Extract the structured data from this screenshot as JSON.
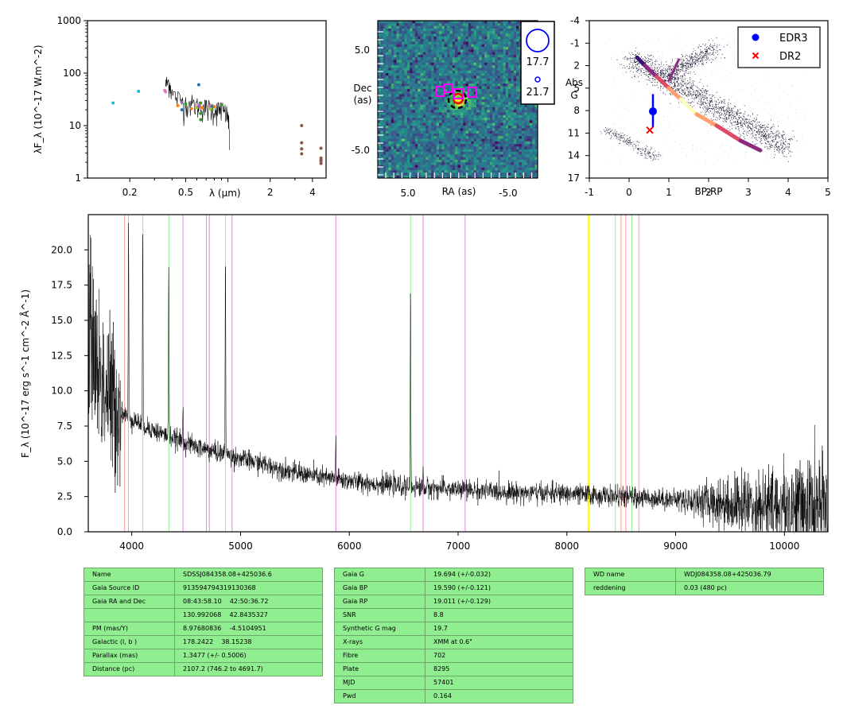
{
  "chart_data": [
    {
      "type": "scatter",
      "panel": "sed",
      "xlabel": "λ (μm)",
      "ylabel": "λF_λ (10^-17 W.m^-2)",
      "xscale": "log",
      "yscale": "log",
      "xlim": [
        0.1,
        5.0
      ],
      "ylim": [
        1,
        1000
      ],
      "xticks": [
        "0.2",
        "0.5",
        "2",
        "4"
      ],
      "yticks": [
        "1",
        "10",
        "100",
        "1000"
      ],
      "series": [
        {
          "color": "#17becf",
          "points": [
            [
              0.152,
              27
            ],
            [
              0.231,
              45
            ]
          ]
        },
        {
          "color": "#e377c2",
          "points": [
            [
              0.355,
              47
            ],
            [
              0.469,
              28
            ],
            [
              0.617,
              25
            ],
            [
              0.748,
              24
            ],
            [
              0.893,
              26
            ],
            [
              0.36,
              44
            ]
          ]
        },
        {
          "color": "#ff7f0e",
          "points": [
            [
              0.44,
              24
            ],
            [
              0.55,
              21
            ],
            [
              0.65,
              22
            ],
            [
              0.8,
              23
            ]
          ]
        },
        {
          "color": "#2ca02c",
          "points": [
            [
              0.5,
              26
            ],
            [
              0.64,
              27
            ],
            [
              0.64,
              13
            ],
            [
              0.64,
              17
            ],
            [
              0.77,
              20
            ],
            [
              0.9,
              25
            ]
          ]
        },
        {
          "color": "#1f77b4",
          "points": [
            [
              0.47,
              20
            ],
            [
              0.62,
              60
            ],
            [
              0.77,
              23
            ]
          ]
        },
        {
          "color": "#bcbd22",
          "points": [
            [
              0.6,
              22
            ],
            [
              0.75,
              21
            ]
          ]
        },
        {
          "color": "#9467bd",
          "points": [
            [
              0.47,
              28
            ],
            [
              0.62,
              23
            ]
          ]
        },
        {
          "color": "#8c564b",
          "points": [
            [
              3.35,
              10
            ],
            [
              3.35,
              4.7
            ],
            [
              3.35,
              3.6
            ],
            [
              3.35,
              2.9
            ],
            [
              4.6,
              3.7
            ],
            [
              4.6,
              2.4
            ],
            [
              4.6,
              2.1
            ],
            [
              4.6,
              1.9
            ],
            [
              4.6,
              2.2
            ]
          ]
        }
      ],
      "sdss_spectrum_envelope": [
        [
          0.36,
          60
        ],
        [
          0.38,
          70
        ],
        [
          0.4,
          40
        ],
        [
          0.45,
          32
        ],
        [
          0.5,
          27
        ],
        [
          0.55,
          26
        ],
        [
          0.6,
          24
        ],
        [
          0.65,
          23
        ],
        [
          0.7,
          22
        ],
        [
          0.75,
          21
        ],
        [
          0.8,
          20
        ],
        [
          0.85,
          20
        ],
        [
          0.9,
          20
        ],
        [
          0.95,
          18
        ],
        [
          1.0,
          15
        ],
        [
          1.03,
          4
        ]
      ]
    },
    {
      "type": "heatmap",
      "panel": "image",
      "xlabel": "RA (as)",
      "ylabel": "Dec\n(as)",
      "xlim": [
        8,
        -8
      ],
      "ylim": [
        -8,
        8
      ],
      "xticks": [
        "5.0",
        "-5.0"
      ],
      "yticks": [
        "5.0",
        "-5.0"
      ],
      "colormap": "viridis",
      "legend": [
        {
          "marker": "large-blue-circle",
          "label": "17.7"
        },
        {
          "marker": "small-blue-circle",
          "label": "21.7"
        }
      ]
    },
    {
      "type": "scatter",
      "panel": "hr",
      "xlabel": "BP-RP",
      "ylabel": "Abs\nG",
      "xlim": [
        -1,
        5
      ],
      "ylim": [
        17,
        -4
      ],
      "xticks": [
        "-1",
        "0",
        "1",
        "2",
        "3",
        "4",
        "5"
      ],
      "yticks": [
        "-4",
        "-1",
        "2",
        "5",
        "8",
        "11",
        "14",
        "17"
      ],
      "series": [
        {
          "name": "EDR3",
          "color": "#0000ff",
          "x": [
            0.6
          ],
          "y": [
            8.1
          ],
          "yerr": [
            [
              5.8,
              10.2
            ]
          ]
        },
        {
          "name": "DR2",
          "color": "#ff0000",
          "x": [
            0.52
          ],
          "y": [
            10.6
          ]
        }
      ]
    },
    {
      "type": "line",
      "panel": "spectrum",
      "xlabel": "",
      "ylabel": "F_λ (10^-17 erg s^-1 cm^-2 Å^-1)",
      "xlim": [
        3600,
        10400
      ],
      "ylim": [
        0,
        22.5
      ],
      "xticks": [
        "4000",
        "5000",
        "6000",
        "7000",
        "8000",
        "9000",
        "10000"
      ],
      "yticks": [
        "0.0",
        "2.5",
        "5.0",
        "7.5",
        "10.0",
        "12.5",
        "15.0",
        "17.5",
        "20.0"
      ],
      "reference_lines": [
        {
          "x": 3934,
          "color": "#ff9999"
        },
        {
          "x": 3969,
          "color": "#ff9999"
        },
        {
          "x": 4102,
          "color": "#90ee90"
        },
        {
          "x": 4341,
          "color": "#90ee90"
        },
        {
          "x": 4471,
          "color": "#ee82ee"
        },
        {
          "x": 4686,
          "color": "#ee82ee"
        },
        {
          "x": 4713,
          "color": "#ee82ee"
        },
        {
          "x": 4861,
          "color": "#90ee90"
        },
        {
          "x": 4922,
          "color": "#ee82ee"
        },
        {
          "x": 5876,
          "color": "#ee82ee"
        },
        {
          "x": 6563,
          "color": "#90ee90"
        },
        {
          "x": 6678,
          "color": "#ee82ee"
        },
        {
          "x": 7065,
          "color": "#ee82ee"
        },
        {
          "x": 8200,
          "color": "#ffff00"
        },
        {
          "x": 8446,
          "color": "#90ee90"
        },
        {
          "x": 8498,
          "color": "#ff9999"
        },
        {
          "x": 8542,
          "color": "#ff9999"
        },
        {
          "x": 8598,
          "color": "#90ee90"
        },
        {
          "x": 8662,
          "color": "#ff9999"
        }
      ],
      "continuum": [
        [
          3600,
          15
        ],
        [
          3700,
          11
        ],
        [
          3800,
          9.5
        ],
        [
          3900,
          8.5
        ],
        [
          4000,
          8
        ],
        [
          4200,
          7.2
        ],
        [
          4400,
          6.6
        ],
        [
          4600,
          6
        ],
        [
          4800,
          5.6
        ],
        [
          5000,
          5.2
        ],
        [
          5200,
          4.8
        ],
        [
          5500,
          4.2
        ],
        [
          5800,
          3.8
        ],
        [
          6000,
          3.6
        ],
        [
          6500,
          3.2
        ],
        [
          7000,
          3.0
        ],
        [
          7500,
          2.8
        ],
        [
          8000,
          2.7
        ],
        [
          8500,
          2.5
        ],
        [
          9000,
          2.3
        ],
        [
          9500,
          2.0
        ],
        [
          10000,
          1.8
        ],
        [
          10400,
          1.6
        ]
      ],
      "emission_lines": [
        [
          3970,
          22
        ],
        [
          4101,
          21
        ],
        [
          4340,
          19
        ],
        [
          4861,
          20
        ],
        [
          6563,
          17
        ],
        [
          5876,
          6.8
        ],
        [
          4471,
          9
        ],
        [
          6678,
          4.6
        ],
        [
          7065,
          3.5
        ]
      ]
    }
  ],
  "tables": {
    "identity": [
      {
        "key": "Name",
        "value": "SDSSJ084358.08+425036.6"
      },
      {
        "key": "Gaia Source ID",
        "value": "913594794319130368"
      },
      {
        "key": "Gaia RA and Dec",
        "value": "08:43:58.10    42:50:36.72"
      },
      {
        "key": "",
        "value": "130.992068    42.8435327"
      },
      {
        "key": "PM (mas/Y)",
        "value": "8.97680836    -4.5104951"
      },
      {
        "key": "Galactic (l, b )",
        "value": "178.2422    38.15238"
      },
      {
        "key": "Parallax (mas)",
        "value": "1.3477 (+/- 0.5006)"
      },
      {
        "key": "Distance (pc)",
        "value": "2107.2 (746.2 to 4691.7)"
      }
    ],
    "photometry": [
      {
        "key": "Gaia G",
        "value": "19.694 (+/-0.032)"
      },
      {
        "key": "Gaia BP",
        "value": "19.590 (+/-0.121)"
      },
      {
        "key": "Gaia RP",
        "value": "19.011 (+/-0.129)"
      },
      {
        "key": "SNR",
        "value": "8.8"
      },
      {
        "key": "Synthetic G mag",
        "value": "19.7"
      },
      {
        "key": "X-rays",
        "value": "XMM at 0.6\""
      },
      {
        "key": "Fibre",
        "value": "702"
      },
      {
        "key": "Plate",
        "value": "8295"
      },
      {
        "key": "MJD",
        "value": "57401"
      },
      {
        "key": "Pwd",
        "value": "0.164"
      }
    ],
    "wd": [
      {
        "key": "WD name",
        "value": "WDJ084358.08+425036.79"
      },
      {
        "key": "reddening",
        "value": "0.03 (480 pc)"
      }
    ]
  }
}
